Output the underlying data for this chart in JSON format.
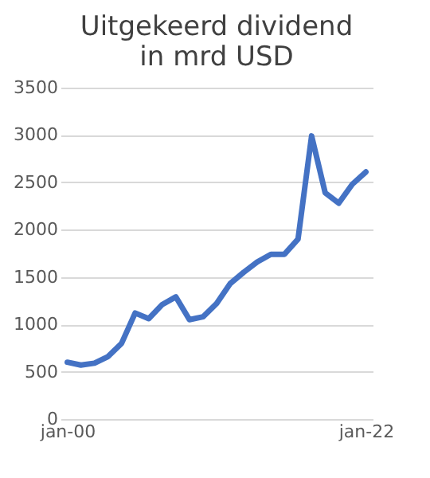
{
  "chart_data": {
    "type": "line",
    "title": [
      "Uitgekeerd dividend",
      "in mrd USD"
    ],
    "categories": [
      "jan-00",
      null,
      null,
      null,
      null,
      null,
      null,
      null,
      null,
      null,
      null,
      null,
      null,
      null,
      null,
      null,
      null,
      null,
      null,
      null,
      null,
      null,
      "jan-22"
    ],
    "series": [
      {
        "color": "#4472c4",
        "values": [
          600,
          570,
          590,
          660,
          800,
          1120,
          1060,
          1210,
          1290,
          1050,
          1080,
          1220,
          1430,
          1550,
          1660,
          1740,
          1740,
          1900,
          2990,
          2390,
          2280,
          2480,
          2610
        ]
      }
    ],
    "ylim": [
      0,
      3500
    ],
    "yticks": [
      0,
      500,
      1000,
      1500,
      2000,
      2500,
      3000,
      3500
    ],
    "grid": "y",
    "legend": false,
    "marker": "none",
    "line_style": "solid"
  }
}
